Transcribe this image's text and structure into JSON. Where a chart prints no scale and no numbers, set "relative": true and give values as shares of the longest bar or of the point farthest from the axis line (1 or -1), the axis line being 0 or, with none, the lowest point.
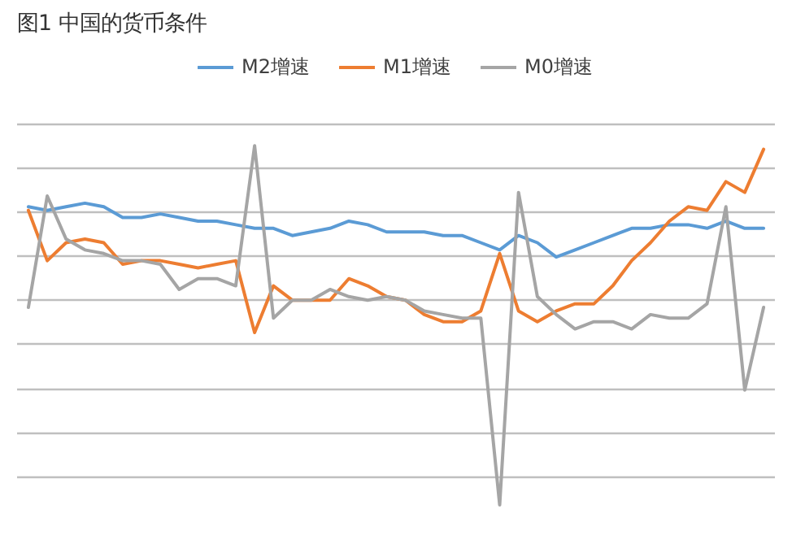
{
  "chart_data": {
    "type": "line",
    "title": "图1     中国的货币条件",
    "relative": true,
    "grid": "y",
    "legend": "top",
    "categories": [
      null,
      null,
      null,
      null,
      null,
      null,
      null,
      null,
      null,
      null,
      null,
      null,
      null,
      null,
      null,
      null,
      null,
      null,
      null,
      null,
      null,
      null,
      null,
      null,
      null,
      null,
      null,
      null,
      null,
      null,
      null,
      null,
      null,
      null,
      null,
      null,
      null,
      null,
      null,
      null
    ],
    "series": [
      {
        "name": "M2增速",
        "color": "#5b9bd5",
        "values": [
          0.83,
          0.82,
          0.83,
          0.84,
          0.83,
          0.8,
          0.8,
          0.81,
          0.8,
          0.79,
          0.79,
          0.78,
          0.77,
          0.77,
          0.75,
          0.76,
          0.77,
          0.79,
          0.78,
          0.76,
          0.76,
          0.76,
          0.75,
          0.75,
          0.73,
          0.71,
          0.75,
          0.73,
          0.69,
          0.71,
          0.73,
          0.75,
          0.77,
          0.77,
          0.78,
          0.78,
          0.77,
          0.79,
          0.77,
          0.77
        ]
      },
      {
        "name": "M1增速",
        "color": "#ed7d31",
        "values": [
          0.82,
          0.68,
          0.73,
          0.74,
          0.73,
          0.67,
          0.68,
          0.68,
          0.67,
          0.66,
          0.67,
          0.68,
          0.48,
          0.61,
          0.57,
          0.57,
          0.57,
          0.63,
          0.61,
          0.58,
          0.57,
          0.53,
          0.51,
          0.51,
          0.54,
          0.7,
          0.54,
          0.51,
          0.54,
          0.56,
          0.56,
          0.61,
          0.68,
          0.73,
          0.79,
          0.83,
          0.82,
          0.9,
          0.87,
          0.99
        ]
      },
      {
        "name": "M0增速",
        "color": "#a5a5a5",
        "values": [
          0.55,
          0.86,
          0.74,
          0.71,
          0.7,
          0.68,
          0.68,
          0.67,
          0.6,
          0.63,
          0.63,
          0.61,
          1,
          0.52,
          0.57,
          0.57,
          0.6,
          0.58,
          0.57,
          0.58,
          0.57,
          0.54,
          0.53,
          0.52,
          0.52,
          0,
          0.87,
          0.58,
          0.53,
          0.49,
          0.51,
          0.51,
          0.49,
          0.53,
          0.52,
          0.52,
          0.56,
          0.83,
          0.32,
          0.55
        ]
      }
    ]
  }
}
